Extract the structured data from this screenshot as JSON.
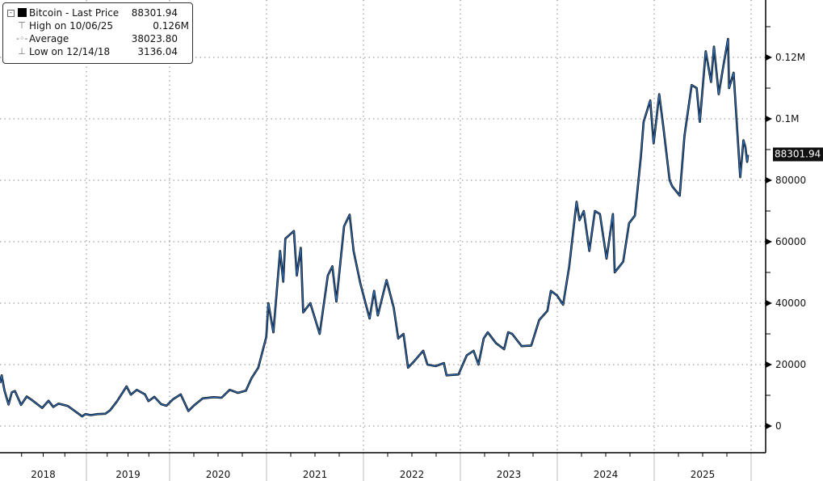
{
  "legend": {
    "rows": [
      {
        "label": "Bitcoin - Last Price",
        "value": "88301.94",
        "icon": "black-square"
      },
      {
        "label": "High on 10/06/25",
        "value": "0.126M",
        "icon": "high-marker"
      },
      {
        "label": "Average",
        "value": "38023.80",
        "icon": "average-marker"
      },
      {
        "label": "Low on 12/14/18",
        "value": "3136.04",
        "icon": "low-marker"
      }
    ]
  },
  "chart_data": {
    "type": "line",
    "title": "",
    "xlabel": "",
    "ylabel": "",
    "ylim": [
      -5000,
      140000
    ],
    "grid": true,
    "legend_position": "top-left",
    "y_ticks": [
      {
        "value": 0,
        "label": "0"
      },
      {
        "value": 20000,
        "label": "20000"
      },
      {
        "value": 40000,
        "label": "40000"
      },
      {
        "value": 60000,
        "label": "60000"
      },
      {
        "value": 80000,
        "label": "80000"
      },
      {
        "value": 100000,
        "label": "0.1M"
      },
      {
        "value": 120000,
        "label": "0.12M"
      }
    ],
    "x_ticks": [
      "2018",
      "2019",
      "2020",
      "2021",
      "2022",
      "2023",
      "2024",
      "2025"
    ],
    "last_price_label": "88301.94",
    "colors": {
      "line": "#2f6db5",
      "outline": "#000000",
      "grid": "#888888"
    },
    "series": [
      {
        "name": "Bitcoin - Last Price",
        "points": [
          [
            "2018-01-01",
            14000
          ],
          [
            "2018-01-08",
            16500
          ],
          [
            "2018-01-20",
            11500
          ],
          [
            "2018-02-06",
            7000
          ],
          [
            "2018-02-20",
            11000
          ],
          [
            "2018-03-05",
            11400
          ],
          [
            "2018-03-31",
            6900
          ],
          [
            "2018-04-24",
            9600
          ],
          [
            "2018-05-15",
            8500
          ],
          [
            "2018-06-28",
            5900
          ],
          [
            "2018-07-25",
            8200
          ],
          [
            "2018-08-14",
            6200
          ],
          [
            "2018-09-05",
            7300
          ],
          [
            "2018-10-15",
            6500
          ],
          [
            "2018-11-20",
            4500
          ],
          [
            "2018-12-14",
            3136
          ],
          [
            "2018-12-28",
            3900
          ],
          [
            "2019-01-20",
            3550
          ],
          [
            "2019-02-20",
            3900
          ],
          [
            "2019-03-25",
            4000
          ],
          [
            "2019-04-15",
            5100
          ],
          [
            "2019-05-15",
            8000
          ],
          [
            "2019-06-26",
            12900
          ],
          [
            "2019-07-15",
            10200
          ],
          [
            "2019-08-10",
            11800
          ],
          [
            "2019-09-15",
            10300
          ],
          [
            "2019-09-30",
            8100
          ],
          [
            "2019-10-26",
            9500
          ],
          [
            "2019-11-25",
            7100
          ],
          [
            "2019-12-18",
            6600
          ],
          [
            "2020-01-15",
            8800
          ],
          [
            "2020-02-12",
            10300
          ],
          [
            "2020-03-12",
            4900
          ],
          [
            "2020-04-01",
            6600
          ],
          [
            "2020-05-05",
            9000
          ],
          [
            "2020-06-15",
            9400
          ],
          [
            "2020-07-15",
            9200
          ],
          [
            "2020-08-15",
            11800
          ],
          [
            "2020-09-15",
            10800
          ],
          [
            "2020-10-15",
            11500
          ],
          [
            "2020-11-05",
            15500
          ],
          [
            "2020-12-01",
            19000
          ],
          [
            "2020-12-31",
            29000
          ],
          [
            "2021-01-08",
            40000
          ],
          [
            "2021-01-27",
            30500
          ],
          [
            "2021-02-21",
            57000
          ],
          [
            "2021-03-05",
            47000
          ],
          [
            "2021-03-13",
            61000
          ],
          [
            "2021-04-14",
            63500
          ],
          [
            "2021-04-25",
            49000
          ],
          [
            "2021-05-10",
            58000
          ],
          [
            "2021-05-19",
            37000
          ],
          [
            "2021-06-15",
            40000
          ],
          [
            "2021-07-20",
            30000
          ],
          [
            "2021-08-20",
            49000
          ],
          [
            "2021-09-06",
            52000
          ],
          [
            "2021-09-21",
            40500
          ],
          [
            "2021-10-20",
            65000
          ],
          [
            "2021-11-10",
            68800
          ],
          [
            "2021-11-25",
            57000
          ],
          [
            "2021-12-20",
            46500
          ],
          [
            "2022-01-24",
            35000
          ],
          [
            "2022-02-10",
            44000
          ],
          [
            "2022-02-24",
            36000
          ],
          [
            "2022-03-29",
            47500
          ],
          [
            "2022-04-25",
            38500
          ],
          [
            "2022-05-12",
            28500
          ],
          [
            "2022-06-01",
            30000
          ],
          [
            "2022-06-18",
            19000
          ],
          [
            "2022-07-10",
            21000
          ],
          [
            "2022-08-14",
            24500
          ],
          [
            "2022-08-30",
            20000
          ],
          [
            "2022-09-30",
            19500
          ],
          [
            "2022-10-31",
            20500
          ],
          [
            "2022-11-10",
            16500
          ],
          [
            "2022-12-25",
            16800
          ],
          [
            "2023-01-25",
            23000
          ],
          [
            "2023-02-20",
            24500
          ],
          [
            "2023-03-10",
            20000
          ],
          [
            "2023-03-30",
            28500
          ],
          [
            "2023-04-14",
            30500
          ],
          [
            "2023-05-15",
            27000
          ],
          [
            "2023-06-15",
            25000
          ],
          [
            "2023-06-30",
            30500
          ],
          [
            "2023-07-15",
            30000
          ],
          [
            "2023-08-20",
            26000
          ],
          [
            "2023-09-25",
            26200
          ],
          [
            "2023-10-25",
            34500
          ],
          [
            "2023-11-25",
            37500
          ],
          [
            "2023-12-08",
            44000
          ],
          [
            "2023-12-31",
            42500
          ],
          [
            "2024-01-23",
            39500
          ],
          [
            "2024-02-15",
            52000
          ],
          [
            "2024-03-14",
            73000
          ],
          [
            "2024-03-25",
            67000
          ],
          [
            "2024-04-10",
            70000
          ],
          [
            "2024-05-01",
            57000
          ],
          [
            "2024-05-22",
            70000
          ],
          [
            "2024-06-10",
            69000
          ],
          [
            "2024-07-05",
            54500
          ],
          [
            "2024-07-29",
            69000
          ],
          [
            "2024-08-05",
            50000
          ],
          [
            "2024-09-06",
            53500
          ],
          [
            "2024-09-28",
            66000
          ],
          [
            "2024-10-20",
            68500
          ],
          [
            "2024-11-12",
            88000
          ],
          [
            "2024-11-22",
            99000
          ],
          [
            "2024-12-17",
            106000
          ],
          [
            "2024-12-30",
            92000
          ],
          [
            "2025-01-20",
            108000
          ],
          [
            "2025-02-05",
            97000
          ],
          [
            "2025-02-28",
            80000
          ],
          [
            "2025-03-10",
            78000
          ],
          [
            "2025-04-07",
            75000
          ],
          [
            "2025-04-25",
            94500
          ],
          [
            "2025-05-22",
            111000
          ],
          [
            "2025-06-10",
            110000
          ],
          [
            "2025-06-22",
            99000
          ],
          [
            "2025-07-14",
            122000
          ],
          [
            "2025-08-03",
            112000
          ],
          [
            "2025-08-14",
            123500
          ],
          [
            "2025-09-01",
            108000
          ],
          [
            "2025-09-18",
            117000
          ],
          [
            "2025-10-06",
            126000
          ],
          [
            "2025-10-10",
            110000
          ],
          [
            "2025-10-27",
            115000
          ],
          [
            "2025-11-21",
            81000
          ],
          [
            "2025-12-03",
            93000
          ],
          [
            "2025-12-10",
            91000
          ],
          [
            "2025-12-17",
            86000
          ],
          [
            "2025-12-20",
            88301.94
          ]
        ]
      }
    ]
  }
}
